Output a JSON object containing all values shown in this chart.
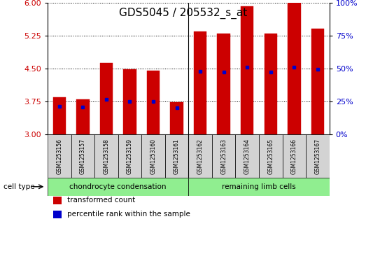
{
  "title": "GDS5045 / 205532_s_at",
  "samples": [
    "GSM1253156",
    "GSM1253157",
    "GSM1253158",
    "GSM1253159",
    "GSM1253160",
    "GSM1253161",
    "GSM1253162",
    "GSM1253163",
    "GSM1253164",
    "GSM1253165",
    "GSM1253166",
    "GSM1253167"
  ],
  "bar_values": [
    3.85,
    3.8,
    4.62,
    4.48,
    4.46,
    3.74,
    5.35,
    5.3,
    5.92,
    5.3,
    6.0,
    5.4
  ],
  "percentile_values": [
    3.645,
    3.63,
    3.795,
    3.757,
    3.757,
    3.618,
    4.432,
    4.425,
    4.535,
    4.425,
    4.535,
    4.48
  ],
  "ymin": 3,
  "ymax": 6,
  "yticks_left": [
    3,
    3.75,
    4.5,
    5.25,
    6
  ],
  "yticks_right": [
    0,
    25,
    50,
    75,
    100
  ],
  "bar_color": "#cc0000",
  "percentile_color": "#0000cc",
  "group1_label": "chondrocyte condensation",
  "group2_label": "remaining limb cells",
  "group1_count": 6,
  "group2_count": 6,
  "group_bg": "#90ee90",
  "cell_type_label": "cell type",
  "legend1": "transformed count",
  "legend2": "percentile rank within the sample",
  "title_fontsize": 11,
  "axis_label_color_left": "#cc0000",
  "axis_label_color_right": "#0000cc",
  "tick_bg": "#d3d3d3",
  "sep_color": "#000000",
  "border_color": "#000000"
}
